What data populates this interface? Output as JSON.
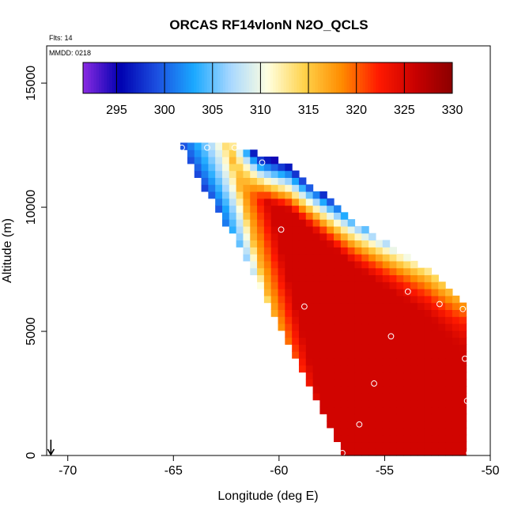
{
  "chart_data": {
    "type": "heatmap",
    "title": "ORCAS RF14vlonN N2O_QCLS",
    "annotations": [
      "Flts: 14",
      "MMDD: 0218"
    ],
    "xlabel": "Longitude (deg E)",
    "ylabel": "Altitude (m)",
    "xlim": [
      -71,
      -50
    ],
    "ylim": [
      0,
      16500
    ],
    "xticks": [
      -70,
      -65,
      -60,
      -55,
      -50
    ],
    "yticks": [
      0,
      5000,
      10000,
      15000
    ],
    "colorbar": {
      "min": 291.5,
      "max": 330,
      "ticks": [
        295,
        300,
        305,
        310,
        315,
        320,
        325,
        330
      ],
      "orientation": "horizontal",
      "placement": "top-inside"
    },
    "colors": {
      "stops": [
        "#8a2be2",
        "#0000b0",
        "#1c4fe0",
        "#1aa8ff",
        "#a8d8ff",
        "#ffffe0",
        "#ffd24a",
        "#ff8c00",
        "#ff1a00",
        "#c80000",
        "#8b0000"
      ]
    },
    "field": {
      "region_vertices": [
        [
          -64.7,
          12500
        ],
        [
          -62.2,
          12500
        ],
        [
          -59.5,
          11700
        ],
        [
          -56.5,
          9500
        ],
        [
          -53.0,
          7500
        ],
        [
          -51.6,
          6300
        ],
        [
          -51.1,
          6000
        ],
        [
          -51.0,
          0
        ],
        [
          -57.0,
          0
        ],
        [
          -61.5,
          7800
        ],
        [
          -64.7,
          12500
        ]
      ],
      "ridge_line": [
        [
          -62.3,
          12200
        ],
        [
          -58.6,
          0
        ]
      ],
      "ridge_value": 316,
      "upper_edge_values": [
        294,
        296,
        305,
        314,
        320,
        324,
        327,
        328
      ],
      "interior_value": 325.5
    },
    "flight_track_points": [
      {
        "x": -64.6,
        "y": 12400
      },
      {
        "x": -63.4,
        "y": 12400
      },
      {
        "x": -62.1,
        "y": 12400
      },
      {
        "x": -60.8,
        "y": 11800
      },
      {
        "x": -59.9,
        "y": 9100
      },
      {
        "x": -58.8,
        "y": 6000
      },
      {
        "x": -54.7,
        "y": 4800
      },
      {
        "x": -53.9,
        "y": 6600
      },
      {
        "x": -52.4,
        "y": 6100
      },
      {
        "x": -51.3,
        "y": 5900
      },
      {
        "x": -51.2,
        "y": 3900
      },
      {
        "x": -51.1,
        "y": 2200
      },
      {
        "x": -55.5,
        "y": 2900
      },
      {
        "x": -56.2,
        "y": 1250
      },
      {
        "x": -57.0,
        "y": 100
      },
      {
        "x": -57.3,
        "y": 50
      },
      {
        "x": -51.0,
        "y": 100
      },
      {
        "x": -50.9,
        "y": 100
      }
    ],
    "arrow_marker": {
      "x": -70.8,
      "y": 0,
      "direction": "down"
    }
  }
}
